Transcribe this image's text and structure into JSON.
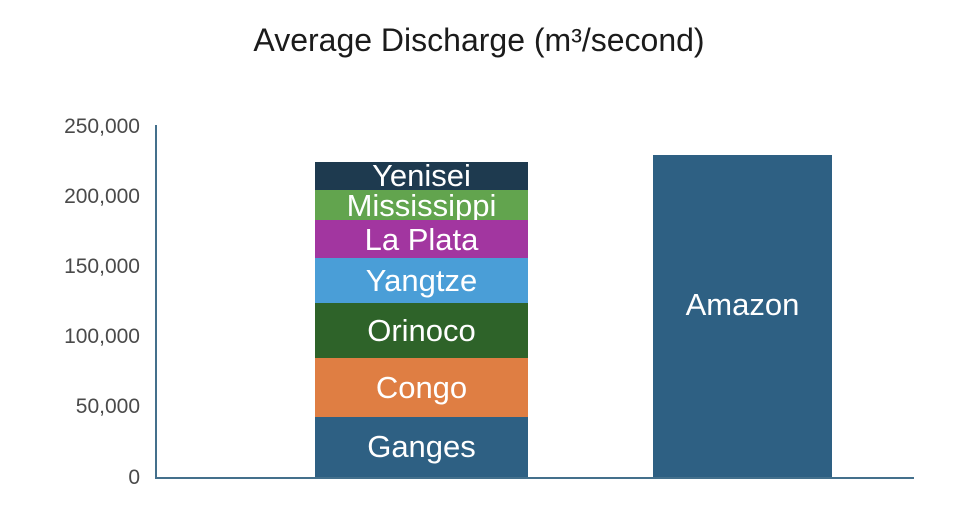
{
  "page": {
    "background": "#ffffff"
  },
  "chart_data": {
    "type": "bar",
    "stacked": true,
    "title": "Average Discharge (m³/second)",
    "xlabel": "",
    "ylabel": "",
    "ylim": [
      0,
      250000
    ],
    "yticks": [
      0,
      50000,
      100000,
      150000,
      200000,
      250000
    ],
    "ytick_labels": [
      "0",
      "50,000",
      "100,000",
      "150,000",
      "200,000",
      "250,000"
    ],
    "grid": false,
    "legend_position": "none",
    "axis_color": "#44708C",
    "tick_label_color": "#4a4a4a",
    "title_color": "#1b1b1b",
    "segment_label_color": "#ffffff",
    "bars": [
      {
        "id": "stack",
        "segments": [
          {
            "label": "Ganges",
            "value": 43000,
            "color": "#2E6083"
          },
          {
            "label": "Congo",
            "value": 42000,
            "color": "#DF7E43"
          },
          {
            "label": "Orinoco",
            "value": 39000,
            "color": "#2E6329"
          },
          {
            "label": "Yangtze",
            "value": 32000,
            "color": "#4A9ED7"
          },
          {
            "label": "La Plata",
            "value": 27000,
            "color": "#A236A0"
          },
          {
            "label": "Mississippi",
            "value": 22000,
            "color": "#62A44E"
          },
          {
            "label": "Yenisei",
            "value": 20000,
            "color": "#1E3A4F"
          }
        ]
      },
      {
        "id": "amazon",
        "segments": [
          {
            "label": "Amazon",
            "value": 230000,
            "color": "#2E6083"
          }
        ]
      }
    ]
  }
}
